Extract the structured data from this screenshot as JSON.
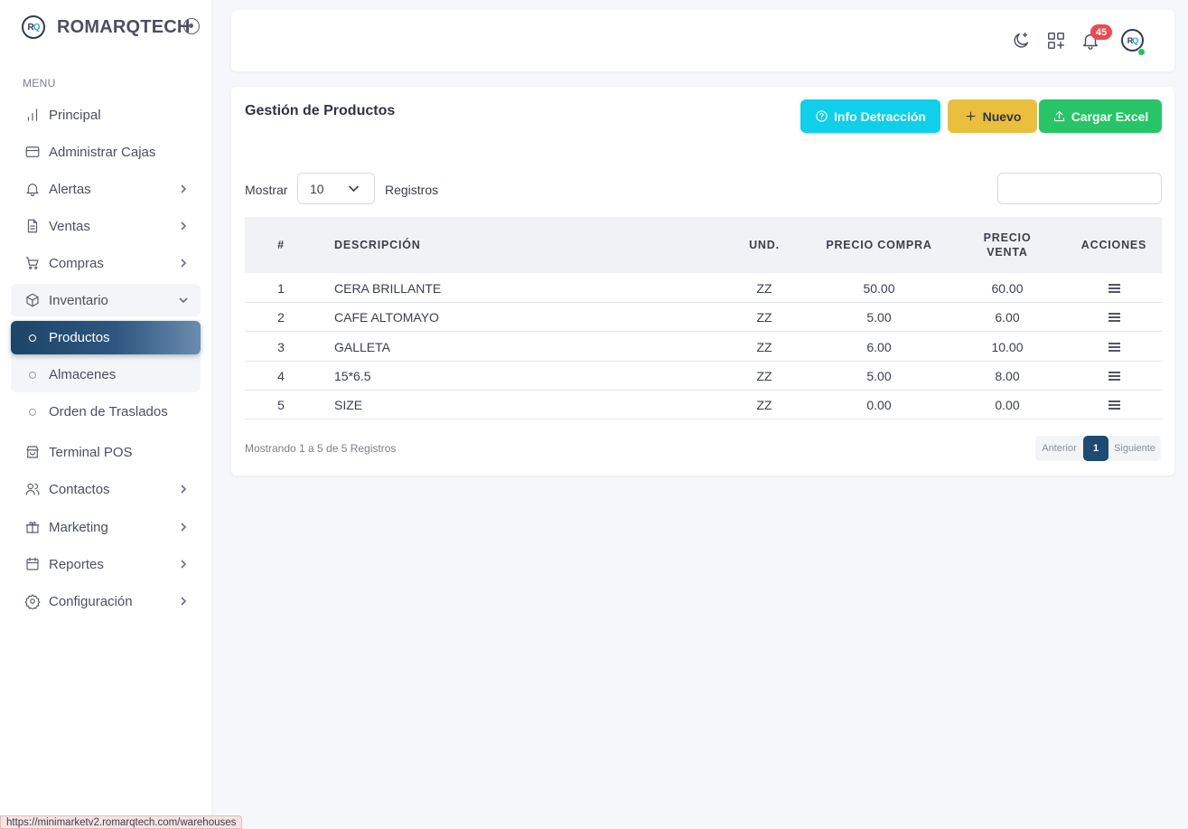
{
  "brand": {
    "name": "ROMARQTECH",
    "logo_r": "R",
    "logo_q": "Q"
  },
  "sidebar": {
    "menu_label": "MENU",
    "items": [
      {
        "label": "Principal"
      },
      {
        "label": "Administrar Cajas"
      },
      {
        "label": "Alertas"
      },
      {
        "label": "Ventas"
      },
      {
        "label": "Compras"
      },
      {
        "label": "Inventario"
      },
      {
        "label": "Terminal POS"
      },
      {
        "label": "Contactos"
      },
      {
        "label": "Marketing"
      },
      {
        "label": "Reportes"
      },
      {
        "label": "Configuración"
      }
    ],
    "sub_items": [
      {
        "label": "Productos"
      },
      {
        "label": "Almacenes"
      },
      {
        "label": "Orden de Traslados"
      }
    ]
  },
  "topbar": {
    "notifications": "45",
    "avatar_r": "R",
    "avatar_q": "Q"
  },
  "card": {
    "title": "Gestión de Productos",
    "btn_info": "Info Detracción",
    "btn_new": "Nuevo",
    "btn_excel": "Cargar Excel",
    "show_label": "Mostrar",
    "page_size": "10",
    "records_label": "Registros",
    "search_value": ""
  },
  "table": {
    "headers": {
      "num": "#",
      "desc": "DESCRIPCIÓN",
      "unit": "UND.",
      "buy": "PRECIO COMPRA",
      "sell": "PRECIO VENTA",
      "actions": "ACCIONES"
    },
    "rows": [
      {
        "num": "1",
        "desc": "CERA BRILLANTE",
        "unit": "ZZ",
        "buy": "50.00",
        "sell": "60.00"
      },
      {
        "num": "2",
        "desc": "CAFE ALTOMAYO",
        "unit": "ZZ",
        "buy": "5.00",
        "sell": "6.00"
      },
      {
        "num": "3",
        "desc": "GALLETA",
        "unit": "ZZ",
        "buy": "6.00",
        "sell": "10.00"
      },
      {
        "num": "4",
        "desc": "15*6.5",
        "unit": "ZZ",
        "buy": "5.00",
        "sell": "8.00"
      },
      {
        "num": "5",
        "desc": "SIZE",
        "unit": "ZZ",
        "buy": "0.00",
        "sell": "0.00"
      }
    ]
  },
  "footer": {
    "info": "Mostrando 1 a 5 de 5 Registros",
    "prev": "Anterior",
    "page": "1",
    "next": "Siguiente"
  },
  "status_url": "https://minimarketv2.romarqtech.com/warehouses",
  "icons": {
    "sidebar": [
      "bar-chart-icon",
      "credit-card-icon",
      "bell-icon",
      "file-text-icon",
      "cart-icon",
      "box-icon",
      "store-icon",
      "users-icon",
      "gift-icon",
      "calendar-icon",
      "gear-icon"
    ],
    "topbar": [
      "moon-icon",
      "grid-plus-icon",
      "bell-icon"
    ]
  },
  "colors": {
    "primary": "#1f4a72",
    "info": "#0fcfea",
    "warning": "#eabf3e",
    "success": "#27c567",
    "badge": "#e84b52"
  }
}
